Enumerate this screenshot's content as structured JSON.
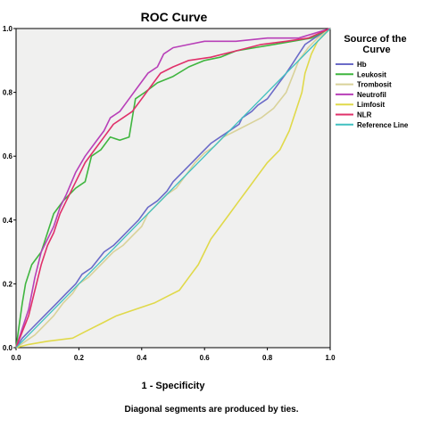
{
  "chart_data": {
    "type": "line",
    "title": "ROC Curve",
    "xlabel": "1 - Specificity",
    "ylabel": "",
    "xlim": [
      0,
      1
    ],
    "ylim": [
      0,
      1
    ],
    "xticks": [
      "0.0",
      "0.2",
      "0.4",
      "0.6",
      "0.8",
      "1.0"
    ],
    "yticks": [
      "0.0",
      "0.2",
      "0.4",
      "0.6",
      "0.8",
      "1.0"
    ],
    "grid": false,
    "legend_title": "Source of the Curve",
    "legend_position": "right",
    "footnote": "Diagonal segments are produced by ties.",
    "series": [
      {
        "name": "Hb",
        "color": "#6b6bc8",
        "points": [
          [
            0,
            0
          ],
          [
            0.02,
            0.03
          ],
          [
            0.05,
            0.06
          ],
          [
            0.09,
            0.1
          ],
          [
            0.13,
            0.14
          ],
          [
            0.16,
            0.17
          ],
          [
            0.19,
            0.2
          ],
          [
            0.21,
            0.23
          ],
          [
            0.24,
            0.25
          ],
          [
            0.28,
            0.3
          ],
          [
            0.31,
            0.32
          ],
          [
            0.33,
            0.34
          ],
          [
            0.37,
            0.38
          ],
          [
            0.39,
            0.4
          ],
          [
            0.42,
            0.44
          ],
          [
            0.45,
            0.46
          ],
          [
            0.48,
            0.49
          ],
          [
            0.5,
            0.52
          ],
          [
            0.53,
            0.55
          ],
          [
            0.56,
            0.58
          ],
          [
            0.59,
            0.61
          ],
          [
            0.62,
            0.64
          ],
          [
            0.65,
            0.66
          ],
          [
            0.68,
            0.68
          ],
          [
            0.71,
            0.7
          ],
          [
            0.72,
            0.72
          ],
          [
            0.75,
            0.74
          ],
          [
            0.77,
            0.76
          ],
          [
            0.8,
            0.78
          ],
          [
            0.83,
            0.82
          ],
          [
            0.86,
            0.86
          ],
          [
            0.88,
            0.89
          ],
          [
            0.9,
            0.92
          ],
          [
            0.92,
            0.95
          ],
          [
            0.95,
            0.97
          ],
          [
            1,
            1
          ]
        ]
      },
      {
        "name": "Leukosit",
        "color": "#3fb53f",
        "points": [
          [
            0,
            0
          ],
          [
            0.01,
            0.07
          ],
          [
            0.02,
            0.14
          ],
          [
            0.03,
            0.2
          ],
          [
            0.05,
            0.26
          ],
          [
            0.08,
            0.3
          ],
          [
            0.1,
            0.36
          ],
          [
            0.12,
            0.42
          ],
          [
            0.15,
            0.46
          ],
          [
            0.19,
            0.5
          ],
          [
            0.22,
            0.52
          ],
          [
            0.24,
            0.6
          ],
          [
            0.27,
            0.62
          ],
          [
            0.3,
            0.66
          ],
          [
            0.33,
            0.65
          ],
          [
            0.36,
            0.66
          ],
          [
            0.38,
            0.78
          ],
          [
            0.41,
            0.8
          ],
          [
            0.45,
            0.83
          ],
          [
            0.5,
            0.85
          ],
          [
            0.55,
            0.88
          ],
          [
            0.6,
            0.9
          ],
          [
            0.65,
            0.91
          ],
          [
            0.7,
            0.93
          ],
          [
            0.76,
            0.94
          ],
          [
            0.82,
            0.95
          ],
          [
            0.88,
            0.96
          ],
          [
            0.94,
            0.97
          ],
          [
            1,
            1
          ]
        ]
      },
      {
        "name": "Trombosit",
        "color": "#d9d29a",
        "points": [
          [
            0,
            0
          ],
          [
            0.03,
            0.02
          ],
          [
            0.06,
            0.04
          ],
          [
            0.09,
            0.07
          ],
          [
            0.12,
            0.1
          ],
          [
            0.15,
            0.14
          ],
          [
            0.18,
            0.17
          ],
          [
            0.2,
            0.2
          ],
          [
            0.23,
            0.22
          ],
          [
            0.25,
            0.24
          ],
          [
            0.28,
            0.27
          ],
          [
            0.31,
            0.3
          ],
          [
            0.34,
            0.32
          ],
          [
            0.37,
            0.35
          ],
          [
            0.4,
            0.38
          ],
          [
            0.42,
            0.42
          ],
          [
            0.45,
            0.45
          ],
          [
            0.48,
            0.48
          ],
          [
            0.51,
            0.5
          ],
          [
            0.54,
            0.54
          ],
          [
            0.57,
            0.58
          ],
          [
            0.6,
            0.61
          ],
          [
            0.63,
            0.63
          ],
          [
            0.66,
            0.66
          ],
          [
            0.7,
            0.68
          ],
          [
            0.74,
            0.7
          ],
          [
            0.78,
            0.72
          ],
          [
            0.82,
            0.75
          ],
          [
            0.86,
            0.8
          ],
          [
            0.88,
            0.85
          ],
          [
            0.9,
            0.9
          ],
          [
            0.93,
            0.94
          ],
          [
            0.96,
            0.97
          ],
          [
            1,
            1
          ]
        ]
      },
      {
        "name": "Neutrofil",
        "color": "#b83fb8",
        "points": [
          [
            0,
            0
          ],
          [
            0.02,
            0.06
          ],
          [
            0.04,
            0.12
          ],
          [
            0.06,
            0.22
          ],
          [
            0.08,
            0.3
          ],
          [
            0.1,
            0.34
          ],
          [
            0.12,
            0.38
          ],
          [
            0.14,
            0.44
          ],
          [
            0.16,
            0.48
          ],
          [
            0.19,
            0.55
          ],
          [
            0.22,
            0.6
          ],
          [
            0.25,
            0.64
          ],
          [
            0.28,
            0.68
          ],
          [
            0.3,
            0.72
          ],
          [
            0.33,
            0.74
          ],
          [
            0.36,
            0.78
          ],
          [
            0.39,
            0.82
          ],
          [
            0.42,
            0.86
          ],
          [
            0.45,
            0.88
          ],
          [
            0.47,
            0.92
          ],
          [
            0.5,
            0.94
          ],
          [
            0.55,
            0.95
          ],
          [
            0.6,
            0.96
          ],
          [
            0.7,
            0.96
          ],
          [
            0.8,
            0.97
          ],
          [
            0.9,
            0.97
          ],
          [
            1,
            1
          ]
        ]
      },
      {
        "name": "Limfosit",
        "color": "#e0d94a",
        "points": [
          [
            0,
            0
          ],
          [
            0.04,
            0.01
          ],
          [
            0.1,
            0.02
          ],
          [
            0.18,
            0.03
          ],
          [
            0.22,
            0.05
          ],
          [
            0.28,
            0.08
          ],
          [
            0.32,
            0.1
          ],
          [
            0.38,
            0.12
          ],
          [
            0.44,
            0.14
          ],
          [
            0.48,
            0.16
          ],
          [
            0.52,
            0.18
          ],
          [
            0.55,
            0.22
          ],
          [
            0.58,
            0.26
          ],
          [
            0.6,
            0.3
          ],
          [
            0.62,
            0.34
          ],
          [
            0.65,
            0.38
          ],
          [
            0.68,
            0.42
          ],
          [
            0.71,
            0.46
          ],
          [
            0.74,
            0.5
          ],
          [
            0.77,
            0.54
          ],
          [
            0.8,
            0.58
          ],
          [
            0.84,
            0.62
          ],
          [
            0.87,
            0.68
          ],
          [
            0.89,
            0.74
          ],
          [
            0.91,
            0.8
          ],
          [
            0.92,
            0.86
          ],
          [
            0.94,
            0.92
          ],
          [
            0.96,
            0.96
          ],
          [
            1,
            1
          ]
        ]
      },
      {
        "name": "NLR",
        "color": "#e0306a",
        "points": [
          [
            0,
            0
          ],
          [
            0.02,
            0.05
          ],
          [
            0.04,
            0.1
          ],
          [
            0.06,
            0.18
          ],
          [
            0.08,
            0.26
          ],
          [
            0.1,
            0.32
          ],
          [
            0.12,
            0.36
          ],
          [
            0.14,
            0.42
          ],
          [
            0.16,
            0.46
          ],
          [
            0.19,
            0.52
          ],
          [
            0.22,
            0.58
          ],
          [
            0.25,
            0.62
          ],
          [
            0.28,
            0.66
          ],
          [
            0.31,
            0.7
          ],
          [
            0.34,
            0.72
          ],
          [
            0.37,
            0.74
          ],
          [
            0.4,
            0.78
          ],
          [
            0.43,
            0.82
          ],
          [
            0.46,
            0.86
          ],
          [
            0.5,
            0.88
          ],
          [
            0.55,
            0.9
          ],
          [
            0.62,
            0.91
          ],
          [
            0.7,
            0.93
          ],
          [
            0.78,
            0.95
          ],
          [
            0.86,
            0.96
          ],
          [
            0.93,
            0.97
          ],
          [
            1,
            1
          ]
        ]
      },
      {
        "name": "Reference Line",
        "color": "#40c0c0",
        "points": [
          [
            0,
            0
          ],
          [
            1,
            1
          ]
        ]
      }
    ]
  }
}
